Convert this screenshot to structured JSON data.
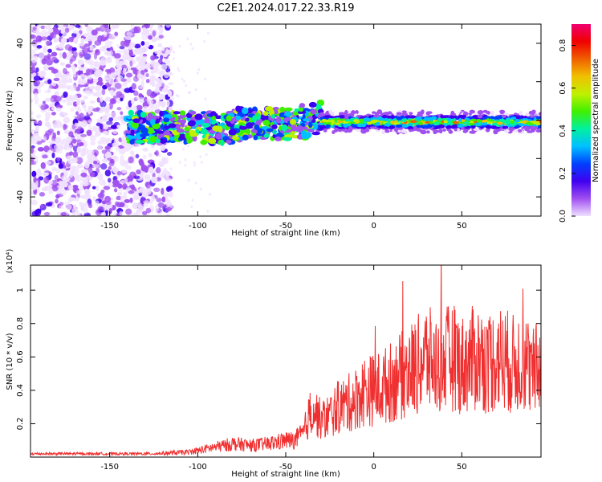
{
  "title": "C2E1.2024.017.22.33.R19",
  "chart_data": [
    {
      "type": "heatmap",
      "xlabel": "Height of straight line (km)",
      "ylabel": "Frequency (Hz)",
      "xlim": [
        -195,
        95
      ],
      "ylim": [
        -50,
        50
      ],
      "xticks": [
        -150,
        -100,
        -50,
        0,
        50
      ],
      "yticks": [
        -40,
        -20,
        0,
        20,
        40
      ],
      "colorbar": {
        "label": "Normalized spectral amplitude",
        "range": [
          0.0,
          0.9
        ],
        "ticks": [
          "0.0",
          "0.2",
          "0.4",
          "0.6",
          "0.8"
        ],
        "colors": [
          "#f0e0ff",
          "#a050f0",
          "#4000f0",
          "#0040ff",
          "#00c0ff",
          "#00f0a0",
          "#40f000",
          "#c0f000",
          "#f0c000",
          "#f06000",
          "#f00000",
          "#f00070"
        ]
      },
      "regions": [
        {
          "x": [
            -195,
            -115
          ],
          "y": [
            -50,
            50
          ],
          "amplitude": [
            0.0,
            0.15
          ],
          "description": "broadband noise"
        },
        {
          "x": [
            -140,
            -30
          ],
          "y": [
            -15,
            10
          ],
          "amplitude": [
            0.05,
            0.6
          ]
        },
        {
          "x": [
            -30,
            95
          ],
          "y": [
            -6,
            4
          ],
          "amplitude": [
            0.1,
            0.9
          ]
        }
      ],
      "grid": false
    },
    {
      "type": "line",
      "xlabel": "Height of straight line (km)",
      "ylabel": "SNR (10 * v/v)",
      "yscale_label": "(x10⁴)",
      "xlim": [
        -195,
        95
      ],
      "ylim": [
        0,
        1.15
      ],
      "xticks": [
        -150,
        -100,
        -50,
        0,
        50
      ],
      "yticks": [
        0.2,
        0.4,
        0.6,
        0.8,
        1.0
      ],
      "color": "#f03030",
      "series": [
        {
          "x": [
            -195,
            -180,
            -160,
            -140,
            -125,
            -115,
            -105,
            -100,
            -90,
            -80,
            -70,
            -60,
            -50,
            -45,
            -40,
            -35,
            -30,
            -25,
            -20,
            -15,
            -10,
            -5,
            0,
            5,
            10,
            15,
            20,
            25,
            30,
            35,
            40,
            45,
            50,
            55,
            60,
            65,
            70,
            75,
            80,
            85,
            90,
            95
          ],
          "values": [
            0.02,
            0.02,
            0.02,
            0.02,
            0.02,
            0.025,
            0.03,
            0.04,
            0.06,
            0.08,
            0.07,
            0.08,
            0.1,
            0.1,
            0.14,
            0.3,
            0.22,
            0.25,
            0.3,
            0.32,
            0.35,
            0.4,
            0.4,
            0.42,
            0.45,
            0.48,
            0.52,
            0.55,
            0.6,
            0.55,
            0.58,
            0.6,
            0.55,
            0.58,
            0.6,
            0.55,
            0.6,
            0.58,
            0.55,
            0.6,
            0.5,
            0.55
          ]
        }
      ],
      "grid": false
    }
  ]
}
